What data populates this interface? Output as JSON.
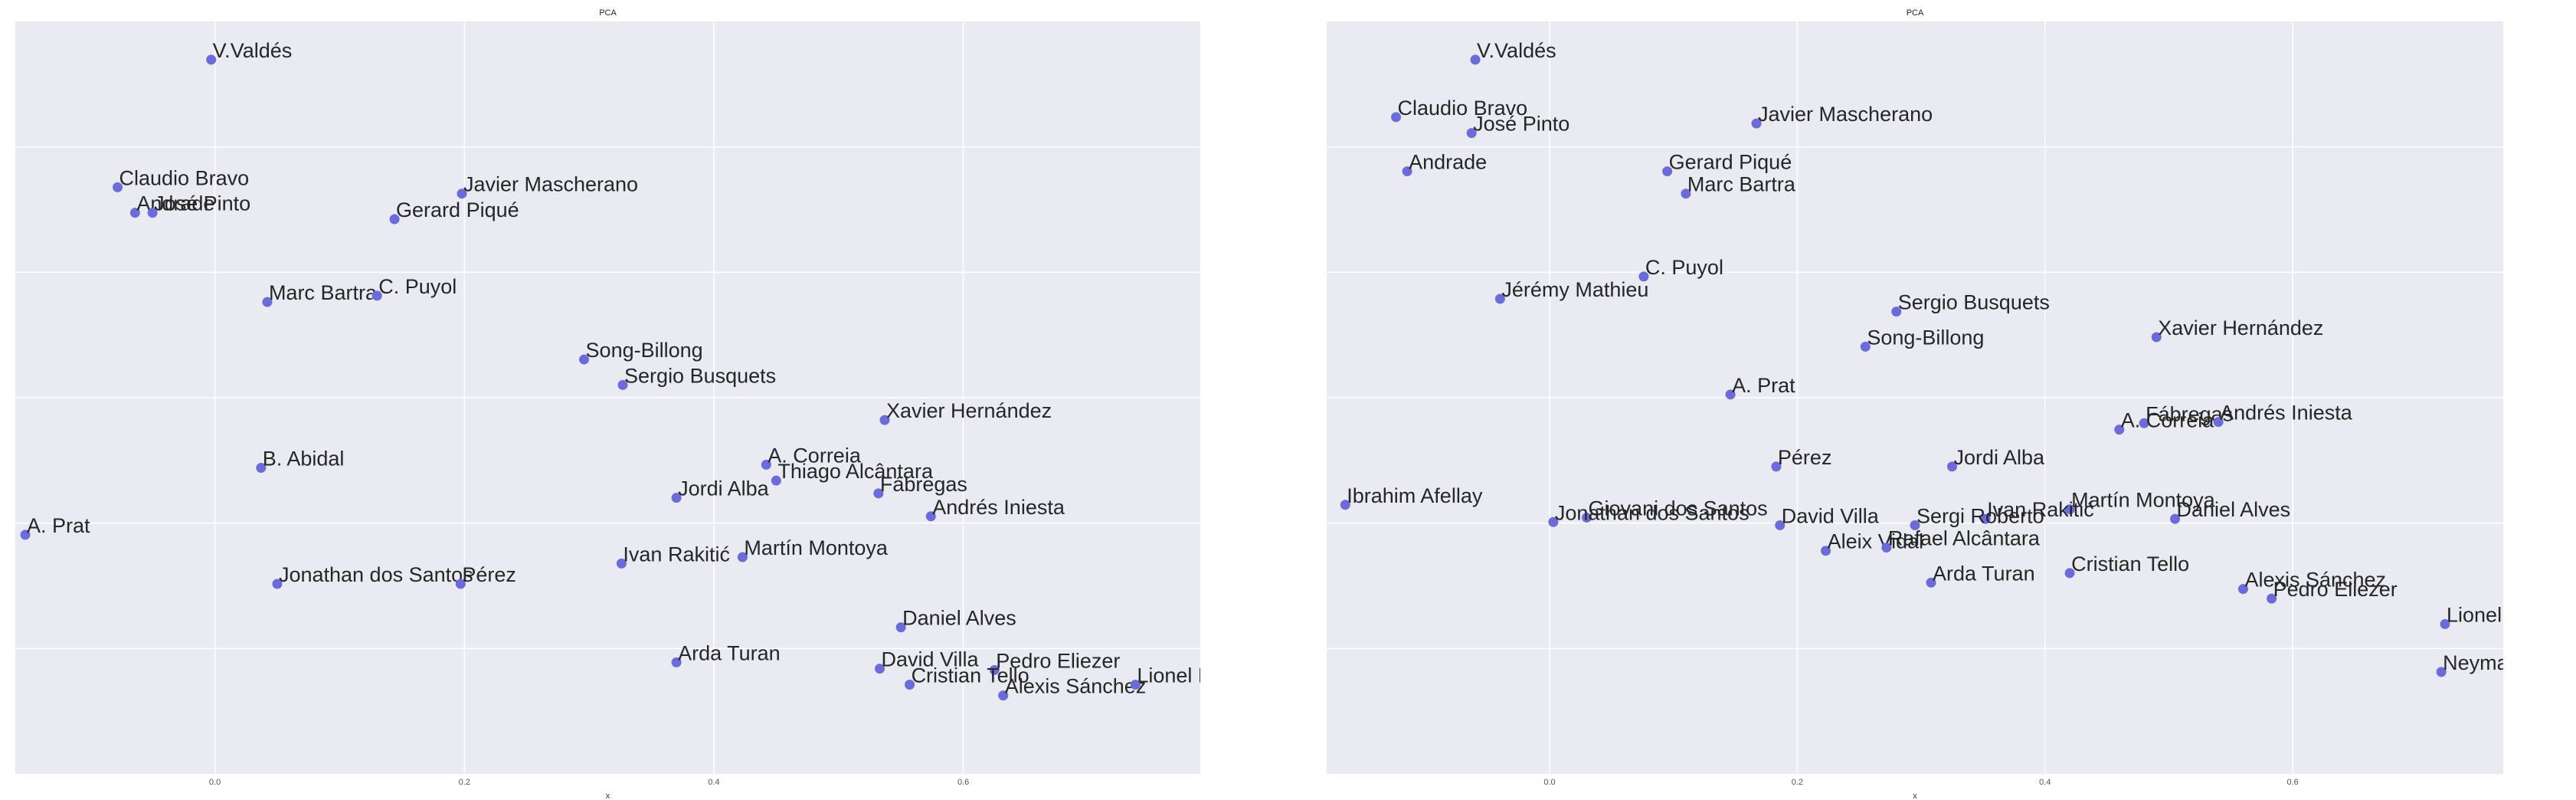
{
  "colors": {
    "plot_background": "#eaeaf2",
    "grid": "#ffffff",
    "point": "#6b6bdc",
    "text": "#262626",
    "page_background": "#ffffff"
  },
  "chart_data": [
    {
      "type": "scatter",
      "title": "PCA",
      "xlabel": "x",
      "ylabel": "",
      "grid": true,
      "xlim": [
        -0.16,
        0.79
      ],
      "ylim": [
        -0.6,
        0.58
      ],
      "xticks": [
        0.0,
        0.2,
        0.4,
        0.6
      ],
      "xtick_labels": [
        "0.0",
        "0.2",
        "0.4",
        "0.6"
      ],
      "points": [
        {
          "label": "V.Valdés",
          "x": -0.003,
          "y": 0.52
        },
        {
          "label": "Claudio Bravo",
          "x": -0.078,
          "y": 0.32
        },
        {
          "label": "Andrade",
          "x": -0.064,
          "y": 0.28
        },
        {
          "label": "José Pinto",
          "x": -0.05,
          "y": 0.28
        },
        {
          "label": "Javier Mascherano",
          "x": 0.198,
          "y": 0.31
        },
        {
          "label": "Gerard Piqué",
          "x": 0.144,
          "y": 0.27
        },
        {
          "label": "Marc Bartra",
          "x": 0.042,
          "y": 0.14
        },
        {
          "label": "C. Puyol",
          "x": 0.13,
          "y": 0.15
        },
        {
          "label": "Song-Billong",
          "x": 0.296,
          "y": 0.05
        },
        {
          "label": "Sergio Busquets",
          "x": 0.327,
          "y": 0.01
        },
        {
          "label": "Xavier Hernández",
          "x": 0.537,
          "y": -0.045
        },
        {
          "label": "B. Abidal",
          "x": 0.037,
          "y": -0.12
        },
        {
          "label": "A. Correia",
          "x": 0.442,
          "y": -0.115
        },
        {
          "label": "Thiago Alcântara",
          "x": 0.45,
          "y": -0.14
        },
        {
          "label": "Fábregas",
          "x": 0.532,
          "y": -0.16
        },
        {
          "label": "Jordi Alba",
          "x": 0.37,
          "y": -0.167
        },
        {
          "label": "Andrés Iniesta",
          "x": 0.574,
          "y": -0.196
        },
        {
          "label": "A. Prat",
          "x": -0.152,
          "y": -0.225
        },
        {
          "label": "Ivan Rakitić",
          "x": 0.326,
          "y": -0.27
        },
        {
          "label": "Martín Montoya",
          "x": 0.423,
          "y": -0.26
        },
        {
          "label": "Jonathan dos Santos",
          "x": 0.05,
          "y": -0.302
        },
        {
          "label": "Pérez",
          "x": 0.197,
          "y": -0.302
        },
        {
          "label": "Daniel Alves",
          "x": 0.55,
          "y": -0.37
        },
        {
          "label": "Arda Turan",
          "x": 0.37,
          "y": -0.425
        },
        {
          "label": "David Villa",
          "x": 0.533,
          "y": -0.435
        },
        {
          "label": "Pedro Eliezer",
          "x": 0.625,
          "y": -0.437
        },
        {
          "label": "Cristian Tello",
          "x": 0.557,
          "y": -0.46
        },
        {
          "label": "Alexis Sánchez",
          "x": 0.632,
          "y": -0.477
        },
        {
          "label": "Lionel Messi",
          "x": 0.738,
          "y": -0.46
        }
      ]
    },
    {
      "type": "scatter",
      "title": "PCA",
      "xlabel": "x",
      "ylabel": "",
      "grid": true,
      "xlim": [
        -0.18,
        0.77
      ],
      "ylim": [
        -0.59,
        0.59
      ],
      "xticks": [
        0.0,
        0.2,
        0.4,
        0.6
      ],
      "xtick_labels": [
        "0.0",
        "0.2",
        "0.4",
        "0.6"
      ],
      "points": [
        {
          "label": "V.Valdés",
          "x": -0.06,
          "y": 0.53
        },
        {
          "label": "Claudio Bravo",
          "x": -0.124,
          "y": 0.44
        },
        {
          "label": "José Pinto",
          "x": -0.063,
          "y": 0.415
        },
        {
          "label": "Javier Mascherano",
          "x": 0.167,
          "y": 0.43
        },
        {
          "label": "Andrade",
          "x": -0.115,
          "y": 0.355
        },
        {
          "label": "Gerard Piqué",
          "x": 0.095,
          "y": 0.355
        },
        {
          "label": "Marc Bartra",
          "x": 0.11,
          "y": 0.32
        },
        {
          "label": "C. Puyol",
          "x": 0.076,
          "y": 0.19
        },
        {
          "label": "Jérémy Mathieu",
          "x": -0.04,
          "y": 0.155
        },
        {
          "label": "Sergio Busquets",
          "x": 0.28,
          "y": 0.135
        },
        {
          "label": "Xavier Hernández",
          "x": 0.49,
          "y": 0.095
        },
        {
          "label": "Song-Billong",
          "x": 0.255,
          "y": 0.08
        },
        {
          "label": "A. Prat",
          "x": 0.146,
          "y": 0.005
        },
        {
          "label": "Fábregas",
          "x": 0.48,
          "y": -0.04
        },
        {
          "label": "Andrés Iniesta",
          "x": 0.54,
          "y": -0.038
        },
        {
          "label": "A. Correia",
          "x": 0.46,
          "y": -0.05
        },
        {
          "label": "Pérez",
          "x": 0.183,
          "y": -0.108
        },
        {
          "label": "Jordi Alba",
          "x": 0.325,
          "y": -0.108
        },
        {
          "label": "Martín Montoya",
          "x": 0.42,
          "y": -0.175
        },
        {
          "label": "Ivan Rakitić",
          "x": 0.352,
          "y": -0.19
        },
        {
          "label": "Daniel Alves",
          "x": 0.505,
          "y": -0.19
        },
        {
          "label": "Giovani dos Santos",
          "x": 0.03,
          "y": -0.188
        },
        {
          "label": "Jonathan dos Santos",
          "x": 0.003,
          "y": -0.195
        },
        {
          "label": "David Villa",
          "x": 0.186,
          "y": -0.2
        },
        {
          "label": "Sergi Roberto",
          "x": 0.295,
          "y": -0.2
        },
        {
          "label": "Aleix Vidal",
          "x": 0.223,
          "y": -0.24
        },
        {
          "label": "Rafael Alcântara",
          "x": 0.272,
          "y": -0.235
        },
        {
          "label": "Cristian Tello",
          "x": 0.42,
          "y": -0.275
        },
        {
          "label": "Arda Turan",
          "x": 0.308,
          "y": -0.29
        },
        {
          "label": "Alexis Sánchez",
          "x": 0.56,
          "y": -0.3
        },
        {
          "label": "Pedro Eliezer",
          "x": 0.583,
          "y": -0.315
        },
        {
          "label": "Lionel Messi",
          "x": 0.723,
          "y": -0.355
        },
        {
          "label": "Neymar",
          "x": 0.72,
          "y": -0.43
        },
        {
          "label": "Ibrahim Afellay",
          "x": -0.165,
          "y": -0.168
        }
      ]
    }
  ]
}
